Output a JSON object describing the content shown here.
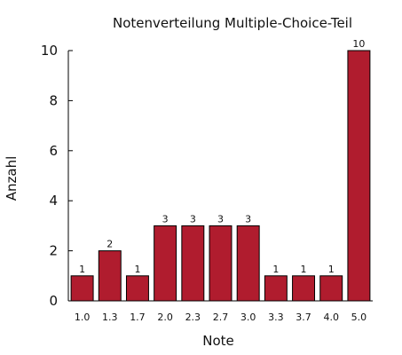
{
  "chart_data": {
    "type": "bar",
    "title": "Notenverteilung Multiple-Choice-Teil",
    "xlabel": "Note",
    "ylabel": "Anzahl",
    "categories": [
      "1.0",
      "1.3",
      "1.7",
      "2.0",
      "2.3",
      "2.7",
      "3.0",
      "3.3",
      "3.7",
      "4.0",
      "5.0"
    ],
    "values": [
      1,
      2,
      1,
      3,
      3,
      3,
      3,
      1,
      1,
      1,
      10
    ],
    "data_labels": [
      "1",
      "2",
      "1",
      "3",
      "3",
      "3",
      "3",
      "1",
      "1",
      "1",
      "10"
    ],
    "ylim": [
      0,
      10
    ],
    "yticks": [
      0,
      2,
      4,
      6,
      8,
      10
    ],
    "ytick_labels": [
      "0",
      "2",
      "4",
      "6",
      "8",
      "10"
    ],
    "grid": false,
    "legend": "none",
    "bar_color": "#b01c2e"
  }
}
